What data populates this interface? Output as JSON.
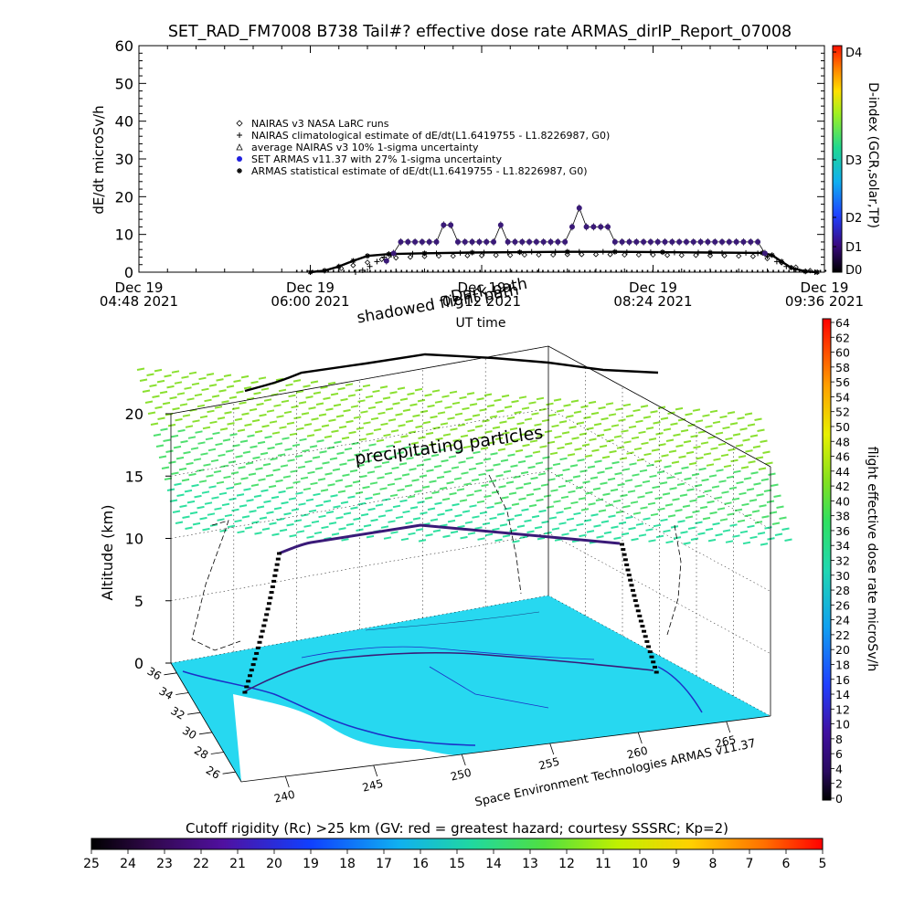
{
  "header": {
    "title": "SET_RAD_FM7008  B738 Tail#? effective dose rate ARMAS_dirIP_Report_07008"
  },
  "chart_data": [
    {
      "type": "scatter",
      "ylabel": "dE/dt microSv/h",
      "xlabel": "UT time",
      "ylim": [
        0,
        60
      ],
      "yticks": [
        "0",
        "10",
        "20",
        "30",
        "40",
        "50",
        "60"
      ],
      "xticks": [
        {
          "line1": "Dec 19",
          "line2": "04:48 2021"
        },
        {
          "line1": "Dec 19",
          "line2": "06:00 2021"
        },
        {
          "line1": "Dec 19",
          "line2": "07:12 2021"
        },
        {
          "line1": "Dec 19",
          "line2": "08:24 2021"
        },
        {
          "line1": "Dec 19",
          "line2": "09:36 2021"
        }
      ],
      "xrange_minutes": [
        0,
        288
      ],
      "legend": [
        {
          "symbol": "diamond",
          "text": "NAIRAS v3 NASA LaRC runs"
        },
        {
          "symbol": "plus",
          "text": "NAIRAS climatological estimate of dE/dt(L1.6419755 - L1.8226987, G0)"
        },
        {
          "symbol": "triangle",
          "text": "average NAIRAS v3 10% 1-sigma uncertainty"
        },
        {
          "symbol": "dot",
          "text": "SET ARMAS v11.37 with 27% 1-sigma uncertainty"
        },
        {
          "symbol": "asterisk",
          "text": "ARMAS statistical estimate of dE/dt(L1.6419755 - L1.8226987, G0)"
        }
      ],
      "series": [
        {
          "name": "ARMAS statistical estimate of dE/dt(L1.6419755 - L1.8226987, G0)",
          "style": "line",
          "points": [
            [
              72,
              0
            ],
            [
              78,
              0.4
            ],
            [
              84,
              1.5
            ],
            [
              90,
              3
            ],
            [
              96,
              4.3
            ],
            [
              105,
              4.8
            ],
            [
              120,
              5
            ],
            [
              140,
              5.2
            ],
            [
              160,
              5.3
            ],
            [
              180,
              5.4
            ],
            [
              200,
              5.4
            ],
            [
              220,
              5.3
            ],
            [
              240,
              5.2
            ],
            [
              262,
              5.1
            ],
            [
              266,
              4.5
            ],
            [
              270,
              2.8
            ],
            [
              274,
              1.2
            ],
            [
              280,
              0.2
            ],
            [
              285,
              0
            ]
          ]
        },
        {
          "name": "NAIRAS climatological estimate of dE/dt(L1.6419755 - L1.8226987, G0)",
          "style": "plus",
          "points": [
            [
              91,
              0
            ],
            [
              94,
              0.5
            ],
            [
              97,
              1.5
            ],
            [
              100,
              2.8
            ],
            [
              103,
              4
            ],
            [
              106,
              4.6
            ],
            [
              115,
              4.9
            ],
            [
              125,
              5
            ],
            [
              135,
              5.1
            ],
            [
              145,
              5.2
            ],
            [
              155,
              5.3
            ],
            [
              165,
              5.4
            ],
            [
              175,
              5.4
            ],
            [
              185,
              5.4
            ],
            [
              195,
              5.4
            ],
            [
              205,
              5.3
            ],
            [
              215,
              5.3
            ],
            [
              225,
              5.2
            ],
            [
              235,
              5.2
            ],
            [
              245,
              5.1
            ],
            [
              255,
              5.1
            ],
            [
              260,
              5
            ],
            [
              264,
              4.2
            ],
            [
              268,
              2.8
            ],
            [
              272,
              1.5
            ],
            [
              276,
              0.6
            ],
            [
              280,
              0.2
            ],
            [
              284,
              0
            ]
          ]
        },
        {
          "name": "SET ARMAS v11.37 with 27% 1-sigma uncertainty",
          "style": "dot",
          "color": "#3a1a78",
          "points": [
            [
              104,
              3
            ],
            [
              107,
              5
            ],
            [
              110,
              8
            ],
            [
              113,
              8
            ],
            [
              116,
              8
            ],
            [
              119,
              8
            ],
            [
              122,
              8
            ],
            [
              125,
              8
            ],
            [
              128,
              12.5
            ],
            [
              131,
              12.5
            ],
            [
              134,
              8
            ],
            [
              137,
              8
            ],
            [
              140,
              8
            ],
            [
              143,
              8
            ],
            [
              146,
              8
            ],
            [
              149,
              8
            ],
            [
              152,
              12.5
            ],
            [
              155,
              8
            ],
            [
              158,
              8
            ],
            [
              161,
              8
            ],
            [
              164,
              8
            ],
            [
              167,
              8
            ],
            [
              170,
              8
            ],
            [
              173,
              8
            ],
            [
              176,
              8
            ],
            [
              179,
              8
            ],
            [
              182,
              12
            ],
            [
              185,
              17
            ],
            [
              188,
              12
            ],
            [
              191,
              12
            ],
            [
              194,
              12
            ],
            [
              197,
              12
            ],
            [
              200,
              8
            ],
            [
              203,
              8
            ],
            [
              206,
              8
            ],
            [
              209,
              8
            ],
            [
              212,
              8
            ],
            [
              215,
              8
            ],
            [
              218,
              8
            ],
            [
              221,
              8
            ],
            [
              224,
              8
            ],
            [
              227,
              8
            ],
            [
              230,
              8
            ],
            [
              233,
              8
            ],
            [
              236,
              8
            ],
            [
              239,
              8
            ],
            [
              242,
              8
            ],
            [
              245,
              8
            ],
            [
              248,
              8
            ],
            [
              251,
              8
            ],
            [
              254,
              8
            ],
            [
              257,
              8
            ],
            [
              260,
              8
            ],
            [
              263,
              5
            ]
          ]
        },
        {
          "name": "NAIRAS v3 NASA LaRC runs",
          "style": "diamond",
          "points": [
            [
              85,
              1
            ],
            [
              90,
              1.8
            ],
            [
              96,
              2.6
            ],
            [
              102,
              3.4
            ],
            [
              108,
              3.8
            ],
            [
              114,
              4
            ],
            [
              120,
              4.2
            ],
            [
              126,
              4.3
            ],
            [
              132,
              4.3
            ],
            [
              138,
              4.4
            ],
            [
              144,
              4.4
            ],
            [
              150,
              4.5
            ],
            [
              156,
              4.5
            ],
            [
              162,
              4.6
            ],
            [
              168,
              4.6
            ],
            [
              174,
              4.6
            ],
            [
              180,
              4.7
            ],
            [
              186,
              4.7
            ],
            [
              192,
              4.7
            ],
            [
              198,
              4.7
            ],
            [
              204,
              4.6
            ],
            [
              210,
              4.6
            ],
            [
              216,
              4.6
            ],
            [
              222,
              4.5
            ],
            [
              228,
              4.5
            ],
            [
              234,
              4.5
            ],
            [
              240,
              4.4
            ],
            [
              246,
              4.4
            ],
            [
              252,
              4.3
            ],
            [
              258,
              4.2
            ],
            [
              264,
              3.6
            ],
            [
              270,
              2.5
            ],
            [
              276,
              1.3
            ],
            [
              282,
              0.4
            ]
          ]
        }
      ],
      "annotations": [
        "Dark path",
        "shadowed flight path"
      ],
      "colorbar": {
        "title": "D-index (GCR,solar,TP)",
        "labels": [
          "D4",
          "D3",
          "D2",
          "D1",
          "D0"
        ]
      }
    },
    {
      "type": "3d-surface",
      "ylabel": "Altitude (km)",
      "zlim": [
        0,
        20
      ],
      "zticks": [
        "0",
        "5",
        "10",
        "15",
        "20"
      ],
      "lat_ticks": [
        "36",
        "34",
        "32",
        "30",
        "28",
        "26"
      ],
      "lon_ticks": [
        "240",
        "245",
        "250",
        "255",
        "260",
        "265"
      ],
      "labels": {
        "layer": "precipitating particles",
        "credit": "Space Environment Technologies ARMAS v11.37"
      },
      "colors": {
        "ground": "#27d8f0",
        "coast": "#1c2fc8",
        "flight_track": "#3a1a78"
      },
      "colorbar": {
        "title": "flight effective dose rate microSv/h",
        "range": [
          0,
          64
        ],
        "labels": [
          "64",
          "62",
          "60",
          "58",
          "56",
          "54",
          "52",
          "50",
          "48",
          "46",
          "44",
          "42",
          "40",
          "38",
          "36",
          "34",
          "32",
          "30",
          "28",
          "26",
          "24",
          "22",
          "20",
          "18",
          "16",
          "14",
          "12",
          "10",
          "8",
          "6",
          "4",
          "2",
          "0"
        ]
      }
    }
  ],
  "bottom_colorbar": {
    "title": "Cutoff rigidity (Rc) >25 km (GV: red = greatest hazard; courtesy SSSRC; Kp=2)",
    "labels": [
      "25",
      "24",
      "23",
      "22",
      "21",
      "20",
      "19",
      "18",
      "17",
      "16",
      "15",
      "14",
      "13",
      "12",
      "11",
      "10",
      "9",
      "8",
      "7",
      "6",
      "5"
    ]
  }
}
